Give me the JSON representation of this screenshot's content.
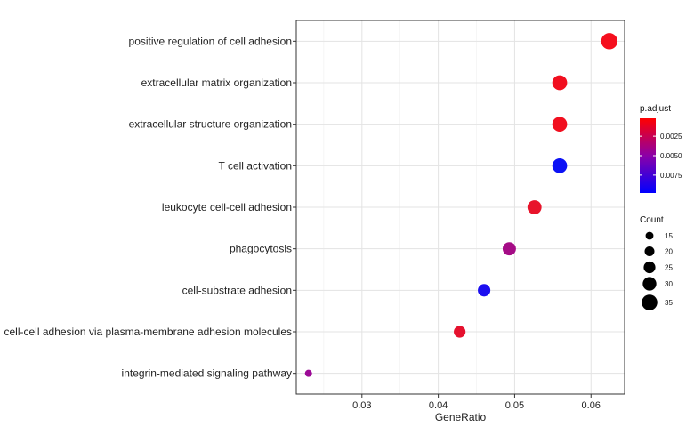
{
  "chart_data": {
    "type": "scatter",
    "xlabel": "GeneRatio",
    "xlim": [
      0.0214,
      0.0644
    ],
    "xticks": [
      0.03,
      0.04,
      0.05,
      0.06
    ],
    "xtick_labels": [
      "0.03",
      "0.04",
      "0.05",
      "0.06"
    ],
    "grid": true,
    "legend_position": "right",
    "points": [
      {
        "term": "positive regulation of cell adhesion",
        "gene_ratio": 0.0624,
        "count": 37,
        "p_adjust": 0.0005,
        "color": "#f50f1e"
      },
      {
        "term": "extracellular matrix organization",
        "gene_ratio": 0.0559,
        "count": 33,
        "p_adjust": 0.0004,
        "color": "#f10f1f"
      },
      {
        "term": "extracellular structure organization",
        "gene_ratio": 0.0559,
        "count": 33,
        "p_adjust": 0.0004,
        "color": "#f10f1f"
      },
      {
        "term": "T cell activation",
        "gene_ratio": 0.0559,
        "count": 33,
        "p_adjust": 0.0095,
        "color": "#0c12f5"
      },
      {
        "term": "leukocyte cell-cell adhesion",
        "gene_ratio": 0.0526,
        "count": 31,
        "p_adjust": 0.001,
        "color": "#e8142b"
      },
      {
        "term": "phagocytosis",
        "gene_ratio": 0.0493,
        "count": 29,
        "p_adjust": 0.006,
        "color": "#a50c86"
      },
      {
        "term": "cell-substrate adhesion",
        "gene_ratio": 0.046,
        "count": 27,
        "p_adjust": 0.0092,
        "color": "#1c0ff0"
      },
      {
        "term": "cell-cell adhesion via plasma-membrane adhesion molecules",
        "gene_ratio": 0.0428,
        "count": 25,
        "p_adjust": 0.0012,
        "color": "#e5112e"
      },
      {
        "term": "integrin-mediated signaling pathway",
        "gene_ratio": 0.023,
        "count": 13,
        "p_adjust": 0.0058,
        "color": "#9c0a96"
      }
    ],
    "legend_color": {
      "title": "p.adjust",
      "domain": [
        0.0002,
        0.0098
      ],
      "colors_low_to_high": [
        "#ff0000",
        "#8b00a8",
        "#0000ff"
      ],
      "ticks": [
        0.0025,
        0.005,
        0.0075
      ],
      "tick_labels": [
        "0.0025",
        "0.0050",
        "0.0075"
      ]
    },
    "legend_size": {
      "title": "Count",
      "values": [
        15,
        20,
        25,
        30,
        35
      ],
      "labels": [
        "15",
        "20",
        "25",
        "30",
        "35"
      ]
    }
  }
}
